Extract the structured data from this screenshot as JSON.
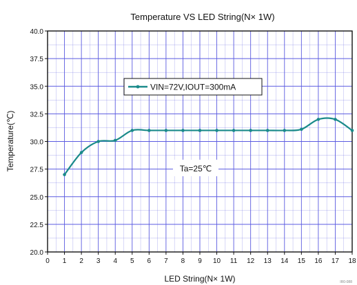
{
  "chart_data": {
    "type": "line",
    "title": "Temperature VS LED String(N× 1W)",
    "xlabel": "LED String(N× 1W)",
    "ylabel": "Temperature(℃)",
    "xlim": [
      0,
      18
    ],
    "ylim": [
      20.0,
      40.0
    ],
    "x_ticks": [
      "0",
      "1",
      "2",
      "3",
      "4",
      "5",
      "6",
      "7",
      "8",
      "9",
      "10",
      "11",
      "12",
      "13",
      "14",
      "15",
      "16",
      "17",
      "18"
    ],
    "y_ticks": [
      "20.0",
      "22.5",
      "25.0",
      "27.5",
      "30.0",
      "32.5",
      "35.0",
      "37.5",
      "40.0"
    ],
    "grid": true,
    "legend_position": "top-center",
    "series": [
      {
        "name": "VIN=72V,IOUT=300mA",
        "color": "#1a8a8a",
        "x": [
          1,
          2,
          3,
          4,
          5,
          6,
          7,
          8,
          9,
          10,
          11,
          12,
          13,
          14,
          15,
          16,
          17,
          18
        ],
        "y": [
          27.0,
          29.0,
          30.0,
          30.1,
          31.0,
          31.0,
          31.0,
          31.0,
          31.0,
          31.0,
          31.0,
          31.0,
          31.0,
          31.0,
          31.1,
          32.0,
          32.0,
          31.0
        ]
      }
    ],
    "annotations": [
      "Ta=25℃"
    ]
  },
  "colors": {
    "grid": "#5a5ae0",
    "axis": "#111111"
  },
  "watermark": "IR0-088"
}
